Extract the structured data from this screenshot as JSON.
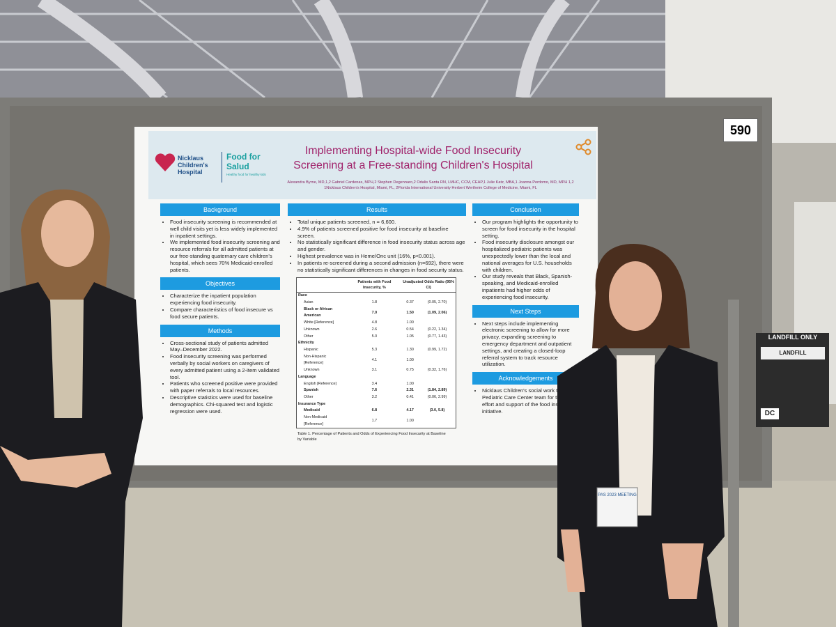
{
  "booth_number": "590",
  "poster": {
    "logo_hospital": "Nicklaus Children's Hospital",
    "logo_food": "Food for Salud",
    "logo_tagline": "Healthy food for healthy kids",
    "title": "Implementing Hospital-wide Food Insecurity Screening at a Free-standing Children's Hospital",
    "authors": "Alexandra Byrne, MD,1,2 Gabriel Cardenas, MPH,2 Stephen Degennaro,2 Odalis Santa RN, LMHC, CCM, CEAP,1 Julie Katz, MBA,1 Joanna Perdomo, MD, MPH 1,2",
    "affiliations": "1Nicklaus Children's Hospital, Miami, FL, 2Florida International University Herbert Wertheim College of Medicine, Miami, FL",
    "sections": [
      {
        "heading": "Background",
        "items": [
          "Food insecurity screening is recommended at well child visits yet is less widely implemented in inpatient settings.",
          "We implemented food insecurity screening and resource referrals for all admitted patients at our free-standing quaternary care children's hospital, which sees 70% Medicaid-enrolled patients."
        ]
      },
      {
        "heading": "Objectives",
        "items": [
          "Characterize the inpatient population experiencing food insecurity.",
          "Compare characteristics of food insecure vs food secure patients."
        ]
      },
      {
        "heading": "Methods",
        "items": [
          "Cross-sectional study of patients admitted May–December 2022.",
          "Food insecurity screening was performed verbally by social workers on caregivers of every admitted patient using a 2-item validated tool.",
          "Patients who screened positive were provided with paper referrals to local resources.",
          "Descriptive statistics were used for baseline demographics. Chi-squared test and logistic regression were used."
        ]
      },
      {
        "heading": "Results",
        "items": [
          "Total unique patients screened, n = 6,600.",
          "4.9% of patients screened positive for food insecurity at baseline screen.",
          "No statistically significant difference in food insecurity status across age and gender.",
          "Highest prevalence was in Heme/Onc unit (16%, p<0.001).",
          "In patients re-screened during a second admission (n=692), there were no statistically significant differences in changes in food security status."
        ]
      },
      {
        "heading": "Conclusion",
        "items": [
          "Our program highlights the opportunity to screen for food insecurity in the hospital setting.",
          "Food insecurity disclosure amongst our hospitalized pediatric patients was unexpectedly lower than the local and national averages for U.S. households with children.",
          "Our study reveals that Black, Spanish-speaking, and Medicaid-enrolled inpatients had higher odds of experiencing food insecurity."
        ]
      },
      {
        "heading": "Next Steps",
        "items": [
          "Next steps include implementing electronic screening to allow for more privacy, expanding screening to emergency department and outpatient settings, and creating a closed-loop referral system to track resource utilization."
        ]
      },
      {
        "heading": "Acknowledgements",
        "items": [
          "Nicklaus Children's social work team and Pediatric Care Center team for their effort and support of the food insecurity initiative."
        ]
      }
    ],
    "table": {
      "headers": [
        "Patients with Food Insecurity, %",
        "Unadjusted Odds Ratio (95% CI)"
      ],
      "rows": [
        {
          "cells": [
            "Race"
          ],
          "group": true
        },
        {
          "cells": [
            "Asian",
            "1.8",
            "0.37",
            "(0.05, 2.70)"
          ]
        },
        {
          "cells": [
            "Black or African American",
            "7.0",
            "1.50",
            "(1.09, 2.06)"
          ],
          "bold": true
        },
        {
          "cells": [
            "White [Reference]",
            "4.8",
            "1.00"
          ]
        },
        {
          "cells": [
            "Unknown",
            "2.6",
            "0.54",
            "(0.22, 1.34)"
          ]
        },
        {
          "cells": [
            "Other",
            "5.0",
            "1.05",
            "(0.77, 1.43)"
          ]
        },
        {
          "cells": [
            "Ethnicity"
          ],
          "group": true
        },
        {
          "cells": [
            "Hispanic",
            "5.3",
            "1.30",
            "(0.99, 1.72)"
          ]
        },
        {
          "cells": [
            "Non-Hispanic [Reference]",
            "4.1",
            "1.00"
          ]
        },
        {
          "cells": [
            "Unknown",
            "3.1",
            "0.75",
            "(0.32, 1.76)"
          ]
        },
        {
          "cells": [
            "Language"
          ],
          "group": true
        },
        {
          "cells": [
            "English [Reference]",
            "3.4",
            "1.00"
          ]
        },
        {
          "cells": [
            "Spanish",
            "7.6",
            "2.31",
            "(1.84, 2.89)"
          ],
          "bold": true
        },
        {
          "cells": [
            "Other",
            "3.2",
            "0.41",
            "(0.06, 2.99)"
          ]
        },
        {
          "cells": [
            "Insurance Type"
          ],
          "group": true
        },
        {
          "cells": [
            "Medicaid",
            "6.8",
            "4.17",
            "(3.0, 5.8)"
          ],
          "bold": true
        },
        {
          "cells": [
            "Non-Medicaid [Reference]",
            "1.7",
            "1.00"
          ]
        }
      ],
      "caption": "Table 1. Percentage of Patients and Odds of Experiencing Food Insecurity at Baseline by Variable"
    }
  },
  "badge": "PAS 2023 MEETING",
  "signs": {
    "landfill_only": "LANDFILL ONLY",
    "landfill": "LANDFILL",
    "dc": "DC"
  }
}
